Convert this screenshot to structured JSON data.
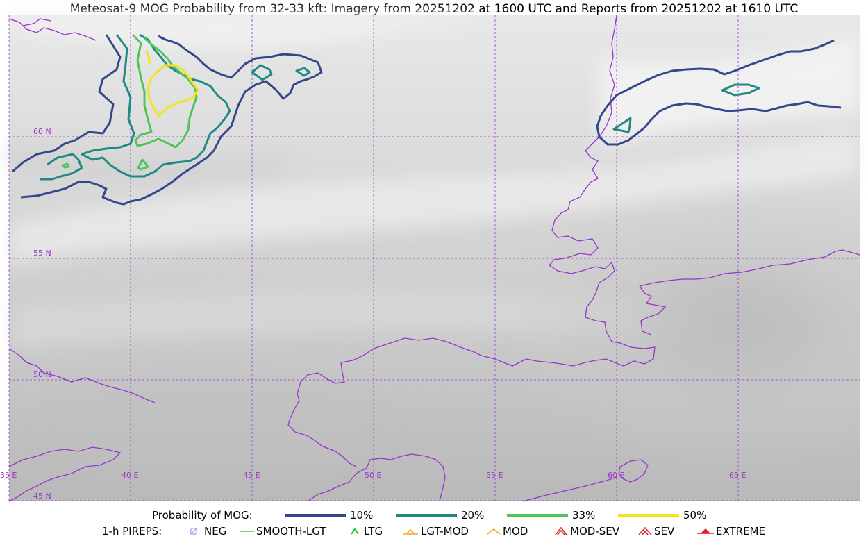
{
  "title": "Meteosat-9 MOG Probability from 32-33 kft: Imagery from 20251202 at 1600 UTC and Reports from 20251202 at 1610 UTC",
  "map": {
    "grid_color": "#9933cc",
    "coast_color": "#9933cc",
    "latitude_labels": [
      "60 N",
      "55 N",
      "50 N",
      "45 N"
    ],
    "longitude_labels": [
      "35 E",
      "40 E",
      "45 E",
      "50 E",
      "55 E",
      "60 E",
      "65 E"
    ]
  },
  "legend": {
    "probability_title": "Probability of MOG:",
    "probability_items": [
      {
        "label": "10%",
        "color": "#34478c"
      },
      {
        "label": "20%",
        "color": "#1f8a84"
      },
      {
        "label": "33%",
        "color": "#4fc45a"
      },
      {
        "label": "50%",
        "color": "#f2e51c"
      }
    ],
    "pireps_title": "1-h PIREPS:",
    "pireps_items": [
      {
        "label": "NEG",
        "icon": "neg-icon",
        "color": "#aaaaee"
      },
      {
        "label": "SMOOTH-LGT",
        "icon": "smooth-lgt-line-icon",
        "color": "#33cc33"
      },
      {
        "label": "LTG",
        "icon": "ltg-chevron-icon",
        "color": "#22cc22"
      },
      {
        "label": "LGT-MOD",
        "icon": "lgt-mod-icon",
        "color": "#f5a623"
      },
      {
        "label": "MOD",
        "icon": "mod-chevron-icon",
        "color": "#f5a623"
      },
      {
        "label": "MOD-SEV",
        "icon": "mod-sev-icon",
        "color": "#e02020"
      },
      {
        "label": "SEV",
        "icon": "sev-icon",
        "color": "#e02020"
      },
      {
        "label": "EXTREME",
        "icon": "extreme-icon",
        "color": "#e02020"
      }
    ]
  }
}
